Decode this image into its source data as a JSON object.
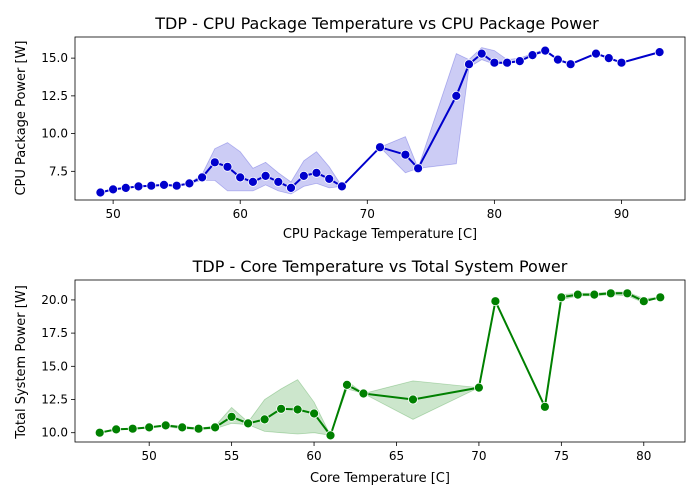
{
  "chart_data": [
    {
      "type": "line",
      "title": "TDP - CPU Package Temperature vs CPU Package Power",
      "xlabel": "CPU Package Temperature [C]",
      "ylabel": "CPU Package Power [W]",
      "xlim": [
        47,
        95
      ],
      "ylim": [
        5.6,
        16.4
      ],
      "xticks": [
        50,
        60,
        70,
        80,
        90
      ],
      "yticks": [
        7.5,
        10.0,
        12.5,
        15.0
      ],
      "grid": false,
      "color": "#0000cc",
      "series": [
        {
          "x": [
            49,
            50,
            51,
            52,
            53,
            54,
            55,
            56,
            57,
            58,
            59,
            60,
            61,
            62,
            63,
            64,
            65,
            66,
            67,
            68,
            71,
            73,
            74,
            77,
            78,
            79,
            80,
            81,
            82,
            83,
            84,
            85,
            86,
            88,
            89,
            90,
            93
          ],
          "y": [
            6.1,
            6.3,
            6.4,
            6.5,
            6.55,
            6.6,
            6.55,
            6.7,
            7.1,
            8.1,
            7.8,
            7.1,
            6.8,
            7.2,
            6.8,
            6.4,
            7.2,
            7.4,
            7.0,
            6.5,
            9.1,
            8.6,
            7.7,
            12.5,
            14.6,
            15.3,
            14.7,
            14.7,
            14.8,
            15.2,
            15.5,
            14.9,
            14.6,
            15.3,
            15.0,
            14.7,
            15.4
          ],
          "ci_low": [
            6.1,
            6.3,
            6.4,
            6.5,
            6.55,
            6.6,
            6.55,
            6.7,
            6.9,
            6.9,
            6.2,
            6.2,
            6.2,
            6.6,
            6.2,
            6.0,
            6.5,
            6.7,
            6.4,
            6.5,
            9.1,
            7.4,
            7.7,
            8.0,
            14.4,
            14.9,
            14.6,
            14.7,
            14.8,
            15.2,
            15.4,
            14.9,
            14.6,
            15.3,
            15.0,
            14.7,
            15.4
          ],
          "ci_high": [
            6.1,
            6.3,
            6.4,
            6.5,
            6.55,
            6.6,
            6.55,
            6.7,
            7.3,
            9.0,
            9.4,
            8.8,
            7.7,
            8.1,
            7.4,
            6.8,
            8.2,
            8.8,
            7.8,
            6.5,
            9.1,
            9.8,
            7.7,
            15.3,
            14.9,
            15.7,
            15.5,
            14.9,
            15.0,
            15.3,
            15.6,
            14.9,
            14.6,
            15.3,
            15.0,
            14.7,
            15.4
          ]
        }
      ]
    },
    {
      "type": "line",
      "title": "TDP - Core Temperature vs Total System Power",
      "xlabel": "Core Temperature [C]",
      "ylabel": "Total System Power [W]",
      "xlim": [
        45.5,
        82.5
      ],
      "ylim": [
        9.3,
        21.5
      ],
      "xticks": [
        50,
        55,
        60,
        65,
        70,
        75,
        80
      ],
      "yticks": [
        10.0,
        12.5,
        15.0,
        17.5,
        20.0
      ],
      "grid": false,
      "color": "#008000",
      "series": [
        {
          "x": [
            47,
            48,
            49,
            50,
            51,
            52,
            53,
            54,
            55,
            56,
            57,
            58,
            59,
            60,
            61,
            62,
            63,
            66,
            70,
            71,
            74,
            75,
            76,
            77,
            78,
            79,
            80,
            81
          ],
          "y": [
            10.0,
            10.25,
            10.3,
            10.4,
            10.55,
            10.4,
            10.3,
            10.4,
            11.2,
            10.7,
            11.0,
            11.8,
            11.75,
            11.45,
            9.8,
            13.6,
            12.95,
            12.5,
            13.4,
            19.9,
            11.95,
            20.2,
            20.4,
            20.4,
            20.5,
            20.5,
            19.9,
            20.2
          ],
          "ci_low": [
            10.0,
            10.2,
            10.3,
            10.4,
            10.45,
            10.3,
            10.25,
            10.3,
            10.7,
            10.6,
            10.1,
            10.0,
            9.9,
            10.0,
            9.8,
            13.3,
            12.95,
            11.0,
            13.4,
            19.9,
            11.95,
            20.0,
            20.3,
            20.3,
            20.4,
            20.3,
            19.8,
            20.2
          ],
          "ci_high": [
            10.0,
            10.3,
            10.3,
            10.4,
            10.6,
            10.5,
            10.35,
            10.5,
            11.9,
            10.8,
            12.5,
            13.3,
            14.0,
            12.3,
            9.8,
            13.9,
            12.95,
            13.9,
            13.4,
            19.9,
            11.95,
            20.4,
            20.5,
            20.5,
            20.6,
            20.6,
            20.1,
            20.2
          ]
        }
      ]
    }
  ]
}
